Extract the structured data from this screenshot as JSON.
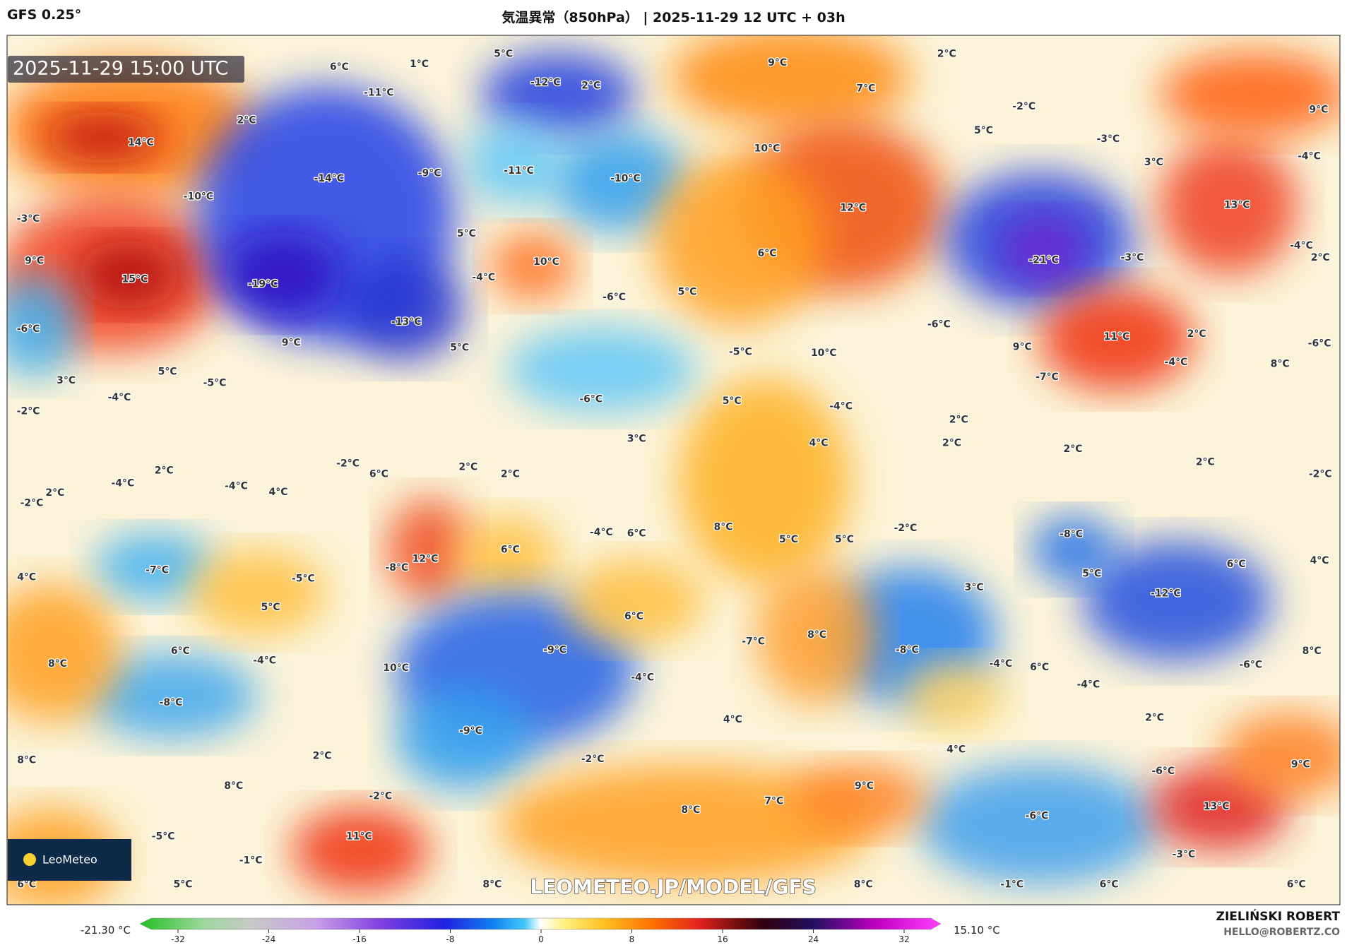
{
  "header": {
    "model": "GFS 0.25°",
    "title": "気温異常（850hPa） | 2025-11-29 12 UTC + 03h"
  },
  "map": {
    "timestamp": "2025-11-29 15:00 UTC",
    "watermark": "LEOMETEO.JP/MODEL/GFS",
    "logo": "LeoMeteo",
    "labels": [
      "6°C",
      "1°C",
      "5°C",
      "-12°C",
      "2°C",
      "9°C",
      "7°C",
      "2°C",
      "-11°C",
      "2°C",
      "14°C",
      "-14°C",
      "-9°C",
      "-11°C",
      "-10°C",
      "10°C",
      "-2°C",
      "5°C",
      "-3°C",
      "9°C",
      "3°C",
      "-4°C",
      "13°C",
      "-10°C",
      "-3°C",
      "12°C",
      "9°C",
      "15°C",
      "-19°C",
      "5°C",
      "10°C",
      "-4°C",
      "6°C",
      "-21°C",
      "-3°C",
      "-4°C",
      "2°C",
      "-6°C",
      "5°C",
      "-6°C",
      "-13°C",
      "9°C",
      "5°C",
      "-6°C",
      "11°C",
      "2°C",
      "-5°C",
      "10°C",
      "9°C",
      "-6°C",
      "3°C",
      "5°C",
      "-5°C",
      "-4°C",
      "8°C",
      "-7°C",
      "-4°C",
      "-6°C",
      "5°C",
      "-4°C",
      "-2°C",
      "2°C",
      "2°C",
      "4°C",
      "3°C",
      "2°C",
      "-2°C",
      "2°C",
      "2°C",
      "6°C",
      "2°C",
      "-2°C",
      "2°C",
      "-4°C",
      "-4°C",
      "4°C",
      "2°C",
      "-2°C",
      "-2°C",
      "-4°C",
      "6°C",
      "8°C",
      "5°C",
      "5°C",
      "6°C",
      "-8°C",
      "12°C",
      "-8°C",
      "-7°C",
      "4°C",
      "-5°C",
      "5°C",
      "6°C",
      "4°C",
      "3°C",
      "-12°C",
      "5°C",
      "6°C",
      "8°C",
      "-7°C",
      "-8°C",
      "-9°C",
      "6°C",
      "-4°C",
      "8°C",
      "-4°C",
      "6°C",
      "-6°C",
      "8°C",
      "10°C",
      "-4°C",
      "-4°C",
      "-8°C",
      "4°C",
      "2°C",
      "-9°C",
      "4°C",
      "-2°C",
      "2°C",
      "8°C",
      "9°C",
      "-6°C",
      "8°C",
      "9°C",
      "-2°C",
      "7°C",
      "13°C",
      "8°C",
      "-6°C",
      "11°C",
      "-5°C",
      "-3°C",
      "-1°C",
      "6°C",
      "5°C",
      "8°C",
      "8°C",
      "-1°C",
      "6°C",
      "6°C"
    ]
  },
  "colorbar": {
    "min_label": "-21.30 °C",
    "max_label": "15.10 °C",
    "ticks": [
      -32,
      -24,
      -16,
      -8,
      0,
      8,
      16,
      24,
      32
    ]
  },
  "credit": {
    "author": "ZIELIŃSKI ROBERT",
    "email": "HELLO@ROBERTZ.CO"
  }
}
